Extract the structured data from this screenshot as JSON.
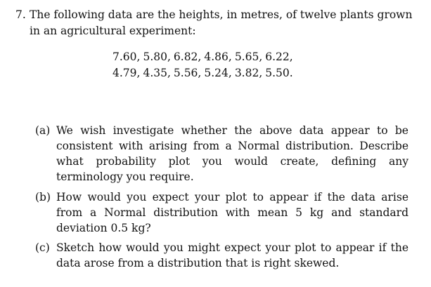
{
  "question": {
    "number": "7.",
    "intro_line1": "The following data are the heights, in metres, of twelve plants grown",
    "intro_line2": "in an agricultural experiment:"
  },
  "data_rows": [
    [
      "7.60,",
      "5.80,",
      "6.82,",
      "4.86,",
      "5.65,",
      "6.22,"
    ],
    [
      "4.79,",
      "4.35,",
      "5.56,",
      "5.24,",
      "3.82,",
      "5.50."
    ]
  ],
  "parts": [
    {
      "label": "(a)",
      "text": "We wish investigate whether the above data appear to be consistent with arising from a Normal distribution. Describe what probability plot you would create, defining any terminology you require."
    },
    {
      "label": "(b)",
      "text": "How would you expect your plot to appear if the data arise from a Normal distribution with mean 5 kg and standard deviation 0.5 kg?"
    },
    {
      "label": "(c)",
      "text": "Sketch how would you might expect your plot to appear if the data arose from a distribution that is right skewed."
    }
  ]
}
